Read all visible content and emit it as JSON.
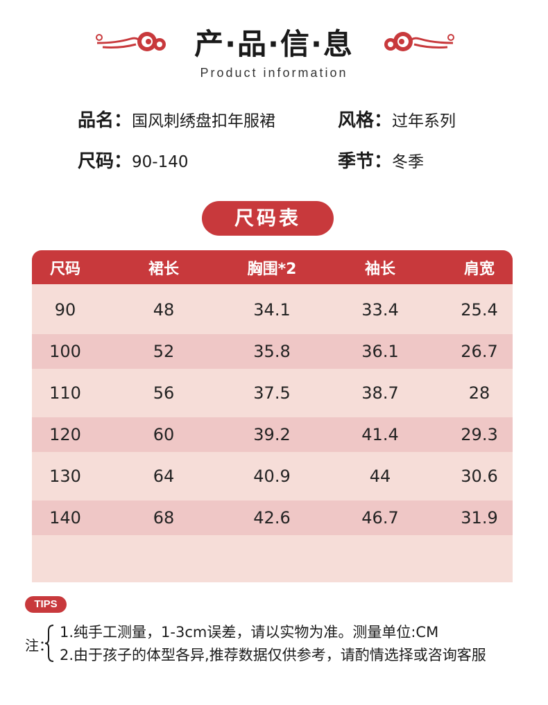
{
  "header": {
    "title": "产·品·信·息",
    "subtitle": "Product information",
    "ornament_color": "#c8393c"
  },
  "info": {
    "name_key": "品名：",
    "name_value": "国风刺绣盘扣年服裙",
    "style_key": "风格：",
    "style_value": "过年系列",
    "size_key": "尺码：",
    "size_value": "90-140",
    "season_key": "季节：",
    "season_value": "冬季"
  },
  "size_chart": {
    "title": "尺码表",
    "headers": [
      "尺码",
      "裙长",
      "胸围*2",
      "袖长",
      "肩宽"
    ],
    "rows": [
      [
        "90",
        "48",
        "34.1",
        "33.4",
        "25.4"
      ],
      [
        "100",
        "52",
        "35.8",
        "36.1",
        "26.7"
      ],
      [
        "110",
        "56",
        "37.5",
        "38.7",
        "28"
      ],
      [
        "120",
        "60",
        "39.2",
        "41.4",
        "29.3"
      ],
      [
        "130",
        "64",
        "40.9",
        "44",
        "30.6"
      ],
      [
        "140",
        "68",
        "42.6",
        "46.7",
        "31.9"
      ]
    ],
    "colors": {
      "header": "#c8393c",
      "row_light": "#f6ddd8",
      "row_dark": "#efc7c6"
    }
  },
  "tips": {
    "badge": "TIPS",
    "label": "注：",
    "lines": [
      "1.纯手工测量，1-3cm误差，请以实物为准。测量单位:CM",
      "2.由于孩子的体型各异,推荐数据仅供参考，请酌情选择或咨询客服"
    ]
  }
}
